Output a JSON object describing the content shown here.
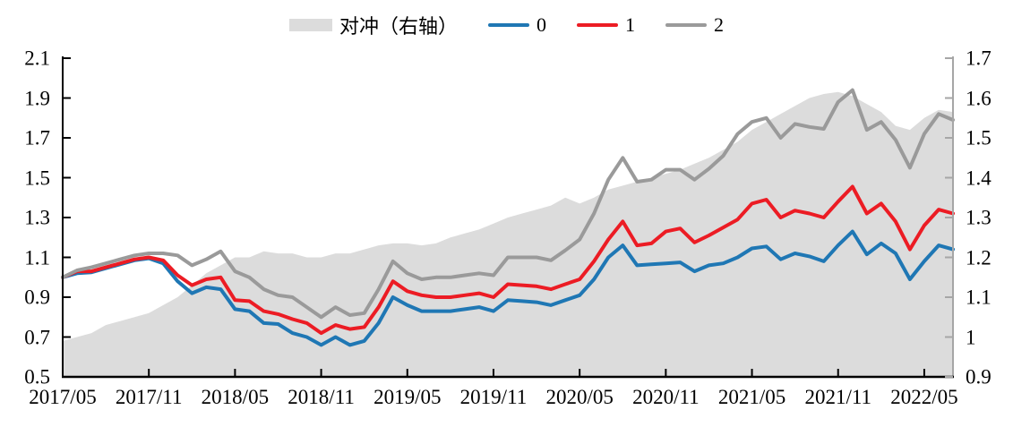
{
  "chart_data": {
    "type": "area+line",
    "title": "",
    "background": "#ffffff",
    "n_points": 63,
    "x_start": "2017/05",
    "x_end": "2022/07",
    "x_tick_labels": [
      "2017/05",
      "2017/11",
      "2018/05",
      "2018/11",
      "2019/05",
      "2019/11",
      "2020/05",
      "2020/11",
      "2021/05",
      "2021/11",
      "2022/05"
    ],
    "x_tick_every_n_months": 6,
    "left_axis": {
      "min": 0.5,
      "max": 2.1,
      "step": 0.2,
      "ticks": [
        "0.5",
        "0.7",
        "0.9",
        "1.1",
        "1.3",
        "1.5",
        "1.7",
        "1.9",
        "2.1"
      ]
    },
    "right_axis": {
      "min": 0.9,
      "max": 1.7,
      "step": 0.1,
      "ticks": [
        "0.9",
        "1",
        "1.1",
        "1.2",
        "1.3",
        "1.4",
        "1.5",
        "1.6",
        "1.7"
      ]
    },
    "grid": "off",
    "legend_position": "top-center",
    "series": [
      {
        "name": "对冲（右轴）",
        "type": "area",
        "axis": "right",
        "color": "#dcdcdc",
        "values": [
          0.99,
          1.0,
          1.01,
          1.03,
          1.04,
          1.05,
          1.06,
          1.08,
          1.1,
          1.13,
          1.16,
          1.18,
          1.2,
          1.2,
          1.215,
          1.21,
          1.21,
          1.2,
          1.2,
          1.21,
          1.21,
          1.22,
          1.23,
          1.235,
          1.235,
          1.23,
          1.235,
          1.25,
          1.26,
          1.27,
          1.285,
          1.3,
          1.31,
          1.32,
          1.33,
          1.35,
          1.335,
          1.35,
          1.37,
          1.38,
          1.39,
          1.4,
          1.41,
          1.42,
          1.435,
          1.45,
          1.47,
          1.49,
          1.52,
          1.54,
          1.56,
          1.58,
          1.6,
          1.61,
          1.615,
          1.605,
          1.585,
          1.565,
          1.53,
          1.52,
          1.55,
          1.57,
          1.565
        ]
      },
      {
        "name": "0",
        "type": "line",
        "axis": "left",
        "color": "#1f77b4",
        "values": [
          1.0,
          1.02,
          1.025,
          1.045,
          1.065,
          1.085,
          1.095,
          1.07,
          0.98,
          0.92,
          0.95,
          0.94,
          0.84,
          0.83,
          0.77,
          0.765,
          0.72,
          0.7,
          0.66,
          0.7,
          0.66,
          0.68,
          0.77,
          0.9,
          0.86,
          0.83,
          0.83,
          0.83,
          0.84,
          0.85,
          0.83,
          0.885,
          0.88,
          0.875,
          0.86,
          0.885,
          0.91,
          0.99,
          1.1,
          1.16,
          1.06,
          1.065,
          1.07,
          1.075,
          1.03,
          1.06,
          1.07,
          1.1,
          1.145,
          1.155,
          1.09,
          1.12,
          1.105,
          1.08,
          1.16,
          1.23,
          1.115,
          1.17,
          1.12,
          0.99,
          1.08,
          1.16,
          1.14
        ]
      },
      {
        "name": "1",
        "type": "line",
        "axis": "left",
        "color": "#ec1c24",
        "values": [
          1.0,
          1.03,
          1.03,
          1.05,
          1.07,
          1.09,
          1.1,
          1.085,
          1.01,
          0.96,
          0.99,
          1.0,
          0.885,
          0.88,
          0.83,
          0.815,
          0.79,
          0.77,
          0.72,
          0.76,
          0.74,
          0.75,
          0.85,
          0.98,
          0.93,
          0.91,
          0.9,
          0.9,
          0.91,
          0.92,
          0.9,
          0.965,
          0.96,
          0.955,
          0.94,
          0.965,
          0.99,
          1.08,
          1.19,
          1.28,
          1.16,
          1.17,
          1.23,
          1.245,
          1.175,
          1.21,
          1.25,
          1.29,
          1.37,
          1.39,
          1.3,
          1.335,
          1.32,
          1.3,
          1.38,
          1.455,
          1.32,
          1.37,
          1.28,
          1.14,
          1.26,
          1.34,
          1.32
        ]
      },
      {
        "name": "2",
        "type": "line",
        "axis": "left",
        "color": "#9a9a9a",
        "values": [
          1.0,
          1.035,
          1.05,
          1.07,
          1.09,
          1.11,
          1.12,
          1.12,
          1.11,
          1.06,
          1.09,
          1.13,
          1.03,
          1.0,
          0.94,
          0.91,
          0.9,
          0.85,
          0.8,
          0.85,
          0.81,
          0.82,
          0.94,
          1.08,
          1.02,
          0.99,
          1.0,
          1.0,
          1.01,
          1.02,
          1.01,
          1.1,
          1.1,
          1.1,
          1.085,
          1.135,
          1.19,
          1.32,
          1.49,
          1.6,
          1.48,
          1.49,
          1.54,
          1.54,
          1.49,
          1.545,
          1.61,
          1.72,
          1.78,
          1.8,
          1.7,
          1.77,
          1.755,
          1.745,
          1.88,
          1.94,
          1.74,
          1.78,
          1.69,
          1.55,
          1.72,
          1.82,
          1.79
        ]
      }
    ],
    "axis_colors": {
      "left_spine": "#000000",
      "bottom_spine": "#000000",
      "right_spine": "#a6a6a6"
    }
  }
}
